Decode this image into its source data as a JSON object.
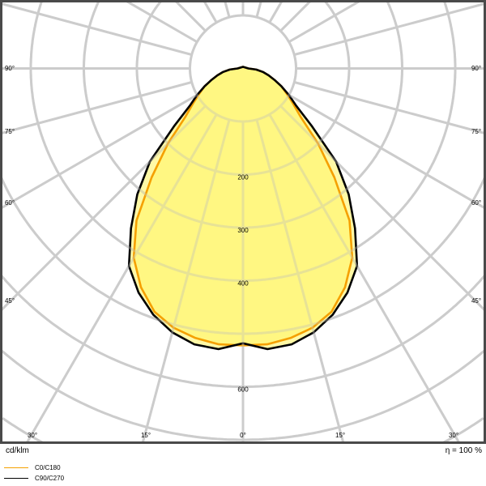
{
  "chart_data": {
    "type": "polar",
    "title": "",
    "unit_label": "cd/klm",
    "efficiency_label": "η = 100 %",
    "radial_ticks": [
      100,
      200,
      300,
      400,
      500,
      600,
      700,
      800,
      900,
      1000
    ],
    "radial_tick_labels": [
      "200",
      "300",
      "400",
      "600"
    ],
    "radial_label_values": [
      200,
      300,
      400,
      600
    ],
    "angle_step_deg": 15,
    "angle_labels_left": [
      "90°",
      "75°",
      "60°",
      "45°",
      "30°",
      "15°"
    ],
    "angle_labels_right": [
      "90°",
      "75°",
      "60°",
      "45°",
      "30°",
      "15°"
    ],
    "angle_label_center": "0°",
    "grid": true,
    "legend_position": "bottom-left",
    "angles_deg": [
      0,
      5,
      10,
      15,
      20,
      25,
      30,
      35,
      40,
      45,
      50,
      55,
      60,
      65,
      70,
      75,
      80,
      85,
      90
    ],
    "series": [
      {
        "name": "C0/C180",
        "color": "#f5a000",
        "values": [
          522,
          522,
          516,
          506,
          488,
          455,
          412,
          350,
          268,
          200,
          142,
          115,
          95,
          80,
          63,
          50,
          38,
          25,
          10
        ]
      },
      {
        "name": "C90/C270",
        "color": "#000000",
        "values": [
          518,
          531,
          528,
          515,
          494,
          466,
          430,
          368,
          310,
          248,
          170,
          122,
          100,
          80,
          63,
          50,
          38,
          25,
          10
        ]
      }
    ],
    "fill_color": "#fff56a",
    "grid_color": "#cccccc",
    "frame_color": "#4a4a4a"
  }
}
